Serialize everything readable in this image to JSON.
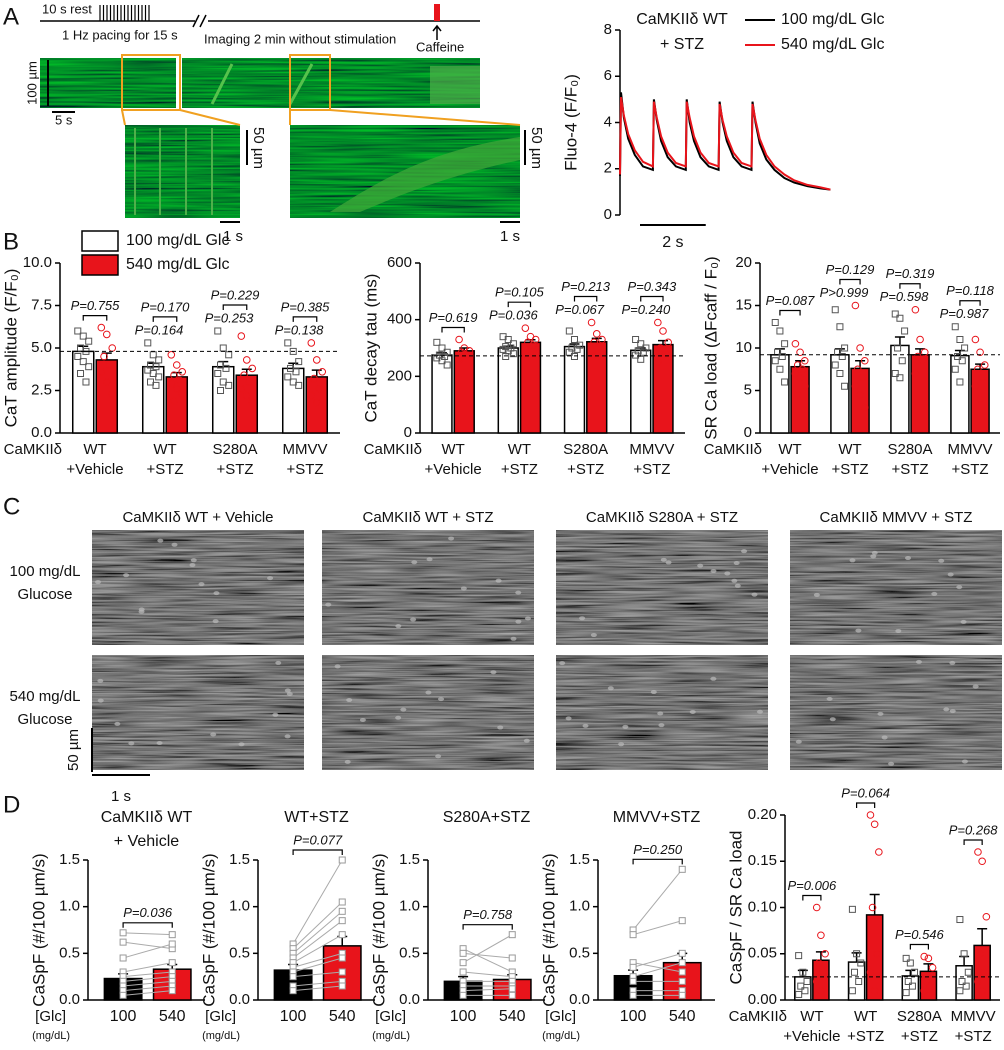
{
  "panel_labels": {
    "a": "A",
    "b": "B",
    "c": "C",
    "d": "D"
  },
  "protocol": {
    "rest": "10 s rest",
    "pacing": "1 Hz pacing for 15 s",
    "imaging": "Imaging 2 min without stimulation",
    "caffeine": "Caffeine",
    "strip_y_scale": "100 µm",
    "strip_x_scale": "5 s",
    "zoom1_y_scale": "50 µm",
    "zoom1_x_scale": "1 s",
    "zoom2_y_scale": "50 µm",
    "zoom2_x_scale": "1 s"
  },
  "sparks": {
    "columns": [
      "CaMKIIδ WT + Vehicle",
      "CaMKIIδ WT + STZ",
      "CaMKIIδ S280A + STZ",
      "CaMKIIδ MMVV + STZ"
    ],
    "rows": [
      [
        "100 mg/dL",
        "Glucose"
      ],
      [
        "540 mg/dL",
        "Glucose"
      ]
    ],
    "y_scale": "50 µm",
    "x_scale": "1 s"
  },
  "chart_data": [
    {
      "type": "line",
      "title": [
        "CaMKIIδ WT",
        "+ STZ"
      ],
      "ylabel": "Fluo-4 (F/F₀)",
      "xlim": [
        0,
        7.3
      ],
      "ylim": [
        0,
        8
      ],
      "yticks": [
        0,
        2,
        4,
        6,
        8
      ],
      "legend": "top-right",
      "scalebar": {
        "value": 2,
        "label": "2 s"
      },
      "x": [
        0,
        0.03,
        0.12,
        0.25,
        0.45,
        0.7,
        1,
        1.03,
        1.12,
        1.25,
        1.45,
        1.7,
        2,
        2.03,
        2.12,
        2.25,
        2.45,
        2.7,
        3,
        3.03,
        3.12,
        3.25,
        3.45,
        3.7,
        4,
        4.03,
        4.12,
        4.25,
        4.45,
        4.7,
        5.0,
        5.3,
        5.7,
        6.1,
        6.4
      ],
      "series": [
        {
          "name": "100 mg/dL Glc",
          "color": "#000000",
          "values": [
            1.7,
            5.3,
            4.2,
            3.3,
            2.6,
            2.1,
            1.95,
            5.0,
            4.1,
            3.2,
            2.5,
            2.1,
            1.95,
            5.0,
            4.0,
            3.2,
            2.5,
            2.1,
            1.95,
            4.9,
            4.0,
            3.2,
            2.5,
            2.1,
            1.95,
            4.9,
            4.0,
            3.1,
            2.4,
            1.95,
            1.6,
            1.4,
            1.25,
            1.15,
            1.1
          ]
        },
        {
          "name": "540 mg/dL Glc",
          "color": "#e8141b",
          "values": [
            1.75,
            5.1,
            4.3,
            3.5,
            2.8,
            2.3,
            2.1,
            4.9,
            4.2,
            3.4,
            2.7,
            2.25,
            2.1,
            4.9,
            4.2,
            3.4,
            2.7,
            2.25,
            2.1,
            4.8,
            4.1,
            3.4,
            2.7,
            2.25,
            2.1,
            4.8,
            4.1,
            3.3,
            2.6,
            2.1,
            1.75,
            1.5,
            1.3,
            1.2,
            1.1
          ]
        }
      ]
    },
    {
      "type": "bar",
      "ylabel": "CaT amplitude (F/F₀)",
      "category_label": "CaMKIIδ",
      "categories": [
        [
          "WT",
          "+Vehicle"
        ],
        [
          "WT",
          "+STZ"
        ],
        [
          "S280A",
          "+STZ"
        ],
        [
          "MMVV",
          "+STZ"
        ]
      ],
      "ylim": [
        0,
        10
      ],
      "yticks": [
        {
          "value": 0,
          "label": "0.0"
        },
        2.5,
        {
          "value": 5,
          "label": "5.0"
        },
        7.5,
        {
          "value": 10,
          "label": "10.0"
        }
      ],
      "reference_line": 4.8,
      "legend": "top-left",
      "p_values": [
        "P=0.755",
        "P=0.170",
        "P=0.229",
        "P=0.385"
      ],
      "p_values_lower": [
        null,
        "P=0.164",
        "P=0.253",
        "P=0.138"
      ],
      "series": [
        {
          "name": "100 mg/dL Glc",
          "color": "#ffffff",
          "marker": "square",
          "marker_color": "#555555",
          "values": [
            4.8,
            3.9,
            3.9,
            3.8
          ],
          "errors": [
            0.3,
            0.2,
            0.3,
            0.3
          ],
          "points": [
            [
              6.0,
              5.7,
              5.4,
              5.0,
              4.8,
              4.5,
              4.2,
              3.9,
              3.5,
              3.0
            ],
            [
              5.3,
              4.6,
              4.3,
              4.0,
              3.9,
              3.7,
              3.5,
              3.3,
              3.0,
              2.8
            ],
            [
              6.0,
              5.0,
              4.6,
              4.0,
              3.8,
              3.5,
              3.0,
              2.8,
              2.5
            ],
            [
              5.3,
              4.8,
              4.2,
              3.8,
              3.6,
              3.3,
              3.0,
              2.8
            ]
          ]
        },
        {
          "name": "540 mg/dL Glc",
          "color": "#e8141b",
          "marker": "circle",
          "marker_color": "#e8141b",
          "values": [
            4.3,
            3.3,
            3.4,
            3.3
          ],
          "errors": [
            0.4,
            0.25,
            0.35,
            0.4
          ],
          "points": [
            [
              6.2,
              5.8,
              5.0,
              4.5,
              4.0,
              3.6,
              3.0,
              2.3
            ],
            [
              4.6,
              4.0,
              3.6,
              3.4,
              3.1,
              2.9,
              2.6,
              2.3,
              1.9
            ],
            [
              5.7,
              4.3,
              3.8,
              3.4,
              3.0,
              2.6,
              2.2,
              1.8
            ],
            [
              5.3,
              4.3,
              3.6,
              3.2,
              2.6,
              2.2,
              1.8
            ]
          ]
        }
      ]
    },
    {
      "type": "bar",
      "ylabel": "CaT decay tau (ms)",
      "category_label": "CaMKIIδ",
      "categories": [
        [
          "WT",
          "+Vehicle"
        ],
        [
          "WT",
          "+STZ"
        ],
        [
          "S280A",
          "+STZ"
        ],
        [
          "MMVV",
          "+STZ"
        ]
      ],
      "ylim": [
        0,
        600
      ],
      "yticks": [
        0,
        200,
        400,
        600
      ],
      "reference_line": 272,
      "p_values": [
        "P=0.619",
        "P=0.105",
        "P=0.213",
        "P=0.343"
      ],
      "p_values_lower": [
        null,
        "P=0.036",
        "P=0.067",
        "P=0.240"
      ],
      "series": [
        {
          "color": "#ffffff",
          "marker": "square",
          "marker_color": "#555555",
          "values": [
            275,
            300,
            305,
            292
          ],
          "errors": [
            8,
            6,
            9,
            8
          ],
          "points": [
            [
              320,
              300,
              285,
              275,
              270,
              265,
              255,
              240
            ],
            [
              340,
              330,
              315,
              305,
              300,
              295,
              290,
              280,
              270
            ],
            [
              360,
              330,
              310,
              300,
              295,
              285,
              270
            ],
            [
              330,
              315,
              300,
              290,
              285,
              275,
              260
            ]
          ]
        },
        {
          "color": "#e8141b",
          "marker": "circle",
          "marker_color": "#e8141b",
          "values": [
            290,
            320,
            322,
            312
          ],
          "errors": [
            10,
            9,
            12,
            14
          ],
          "points": [
            [
              330,
              300,
              290,
              285,
              275,
              260
            ],
            [
              370,
              340,
              330,
              320,
              310,
              300,
              290
            ],
            [
              390,
              350,
              330,
              320,
              305,
              290
            ],
            [
              390,
              360,
              320,
              300,
              280,
              250
            ]
          ]
        }
      ]
    },
    {
      "type": "bar",
      "ylabel": "SR Ca load (ΔFcaff / F₀)",
      "category_label": "CaMKIIδ",
      "categories": [
        [
          "WT",
          "+Vehicle"
        ],
        [
          "WT",
          "+STZ"
        ],
        [
          "S280A",
          "+STZ"
        ],
        [
          "MMVV",
          "+STZ"
        ]
      ],
      "ylim": [
        0,
        20
      ],
      "yticks": [
        0,
        5,
        10,
        15,
        20
      ],
      "reference_line": 9.2,
      "p_values": [
        "P=0.087",
        "P=0.129",
        "P=0.319",
        "P=0.118"
      ],
      "p_values_lower": [
        null,
        "P>0.999",
        "P=0.598",
        "P=0.987"
      ],
      "series": [
        {
          "color": "#ffffff",
          "marker": "square",
          "marker_color": "#555555",
          "values": [
            9.2,
            9.2,
            10.3,
            9.1
          ],
          "errors": [
            0.7,
            0.7,
            1.0,
            0.6
          ],
          "points": [
            [
              13,
              12,
              10.5,
              9.5,
              9,
              8.5,
              7.5,
              6
            ],
            [
              14.5,
              12.5,
              10,
              9.5,
              9,
              8,
              7,
              5.5
            ],
            [
              14,
              13.5,
              12,
              10,
              8.5,
              7,
              6.5
            ],
            [
              12.5,
              11,
              10,
              9,
              8.5,
              7.5,
              6
            ]
          ]
        },
        {
          "color": "#e8141b",
          "marker": "circle",
          "marker_color": "#e8141b",
          "values": [
            7.8,
            7.6,
            9.2,
            7.5
          ],
          "errors": [
            0.7,
            0.9,
            0.7,
            0.6
          ],
          "points": [
            [
              10.5,
              9.5,
              8.5,
              8,
              7.5,
              7,
              6.5,
              5.5,
              4.5
            ],
            [
              15,
              10,
              8.5,
              7.5,
              6.5,
              5.5,
              4.5,
              3
            ],
            [
              14.5,
              11,
              9.5,
              9,
              8.5,
              7
            ],
            [
              11,
              9.5,
              8,
              7.5,
              6.5,
              5.5,
              4
            ]
          ]
        }
      ]
    },
    {
      "type": "paired",
      "title": [
        "CaMKIIδ WT",
        "+ Vehicle"
      ],
      "ylabel": "CaSpF (#/100 µm/s)",
      "xlabel": "[Glc]",
      "xunit": "(mg/dL)",
      "categories": [
        "100",
        "540"
      ],
      "colors": [
        "#000000",
        "#e8141b"
      ],
      "values": [
        0.23,
        0.33
      ],
      "errors": [
        0.05,
        0.05
      ],
      "p_value": "P=0.036",
      "ylim": [
        0,
        1.5
      ],
      "yticks": [
        {
          "value": 0,
          "label": "0.0"
        },
        0.5,
        {
          "value": 1,
          "label": "1.0"
        },
        1.5
      ],
      "pairs": [
        [
          0.72,
          0.7
        ],
        [
          0.62,
          0.55
        ],
        [
          0.45,
          0.6
        ],
        [
          0.3,
          0.4
        ],
        [
          0.25,
          0.3
        ],
        [
          0.2,
          0.25
        ],
        [
          0.15,
          0.2
        ],
        [
          0.1,
          0.15
        ],
        [
          0.05,
          0.1
        ]
      ]
    },
    {
      "type": "paired",
      "title": [
        "WT+STZ"
      ],
      "ylabel": "CaSpF (#/100 µm/s)",
      "xlabel": "[Glc]",
      "xunit": "(mg/dL)",
      "categories": [
        "100",
        "540"
      ],
      "colors": [
        "#000000",
        "#e8141b"
      ],
      "values": [
        0.32,
        0.58
      ],
      "errors": [
        0.06,
        0.1
      ],
      "p_value": "P=0.077",
      "ylim": [
        0,
        1.5
      ],
      "yticks": [
        {
          "value": 0,
          "label": "0.0"
        },
        0.5,
        {
          "value": 1,
          "label": "1.0"
        },
        1.5
      ],
      "pairs": [
        [
          0.6,
          1.5
        ],
        [
          0.55,
          1.05
        ],
        [
          0.5,
          0.95
        ],
        [
          0.45,
          0.85
        ],
        [
          0.4,
          0.7
        ],
        [
          0.35,
          0.5
        ],
        [
          0.3,
          0.45
        ],
        [
          0.25,
          0.3
        ],
        [
          0.15,
          0.2
        ],
        [
          0.1,
          0.15
        ]
      ]
    },
    {
      "type": "paired",
      "title": [
        "S280A+STZ"
      ],
      "ylabel": "CaSpF (#/100 µm/s)",
      "xlabel": "[Glc]",
      "xunit": "(mg/dL)",
      "categories": [
        "100",
        "540"
      ],
      "colors": [
        "#000000",
        "#e8141b"
      ],
      "values": [
        0.2,
        0.22
      ],
      "errors": [
        0.05,
        0.05
      ],
      "p_value": "P=0.758",
      "ylim": [
        0,
        1.5
      ],
      "yticks": [
        {
          "value": 0,
          "label": "0.0"
        },
        0.5,
        {
          "value": 1,
          "label": "1.0"
        },
        1.5
      ],
      "pairs": [
        [
          0.55,
          0.3
        ],
        [
          0.5,
          0.45
        ],
        [
          0.4,
          0.7
        ],
        [
          0.3,
          0.25
        ],
        [
          0.2,
          0.2
        ],
        [
          0.15,
          0.15
        ],
        [
          0.1,
          0.12
        ],
        [
          0.05,
          0.05
        ]
      ]
    },
    {
      "type": "paired",
      "title": [
        "MMVV+STZ"
      ],
      "ylabel": "CaSpF (#/100 µm/s)",
      "xlabel": "[Glc]",
      "xunit": "(mg/dL)",
      "categories": [
        "100",
        "540"
      ],
      "colors": [
        "#000000",
        "#e8141b"
      ],
      "values": [
        0.26,
        0.4
      ],
      "errors": [
        0.06,
        0.1
      ],
      "p_value": "P=0.250",
      "ylim": [
        0,
        1.5
      ],
      "yticks": [
        {
          "value": 0,
          "label": "0.0"
        },
        0.5,
        {
          "value": 1,
          "label": "1.0"
        },
        1.5
      ],
      "pairs": [
        [
          0.75,
          1.4
        ],
        [
          0.7,
          0.85
        ],
        [
          0.4,
          0.3
        ],
        [
          0.35,
          0.5
        ],
        [
          0.25,
          0.4
        ],
        [
          0.2,
          0.2
        ],
        [
          0.1,
          0.1
        ],
        [
          0.05,
          0.05
        ]
      ]
    },
    {
      "type": "bar",
      "ylabel": "CaSpF / SR Ca load",
      "category_label": "CaMKIIδ",
      "categories": [
        [
          "WT",
          "+Vehicle"
        ],
        [
          "WT",
          "+STZ"
        ],
        [
          "S280A",
          "+STZ"
        ],
        [
          "MMVV",
          "+STZ"
        ]
      ],
      "ylim": [
        0,
        0.2
      ],
      "yticks": [
        {
          "value": 0,
          "label": "0.00"
        },
        0.05,
        {
          "value": 0.1,
          "label": "0.10"
        },
        0.15,
        {
          "value": 0.2,
          "label": "0.20"
        }
      ],
      "reference_line": 0.025,
      "p_values": [
        "P=0.006",
        "P=0.064",
        "P=0.546",
        "P=0.268"
      ],
      "series": [
        {
          "color": "#ffffff",
          "marker": "square",
          "marker_color": "#555555",
          "values": [
            0.025,
            0.041,
            0.026,
            0.037
          ],
          "errors": [
            0.007,
            0.01,
            0.006,
            0.01
          ],
          "points": [
            [
              0.048,
              0.03,
              0.02,
              0.015,
              0.01,
              0.006
            ],
            [
              0.098,
              0.05,
              0.04,
              0.03,
              0.02,
              0.01
            ],
            [
              0.045,
              0.04,
              0.03,
              0.02,
              0.015,
              0.008
            ],
            [
              0.087,
              0.05,
              0.03,
              0.02,
              0.015,
              0.01
            ]
          ]
        },
        {
          "color": "#e8141b",
          "marker": "circle",
          "marker_color": "#e8141b",
          "values": [
            0.043,
            0.092,
            0.031,
            0.059
          ],
          "errors": [
            0.009,
            0.022,
            0.008,
            0.018
          ],
          "points": [
            [
              0.1,
              0.07,
              0.05,
              0.04,
              0.03,
              0.02,
              0.01
            ],
            [
              0.2,
              0.19,
              0.16,
              0.1,
              0.05,
              0.03,
              0.01
            ],
            [
              0.047,
              0.045,
              0.035,
              0.02,
              0.015,
              0.01
            ],
            [
              0.16,
              0.15,
              0.09,
              0.05,
              0.03,
              0.02,
              0.01
            ]
          ]
        }
      ]
    }
  ]
}
